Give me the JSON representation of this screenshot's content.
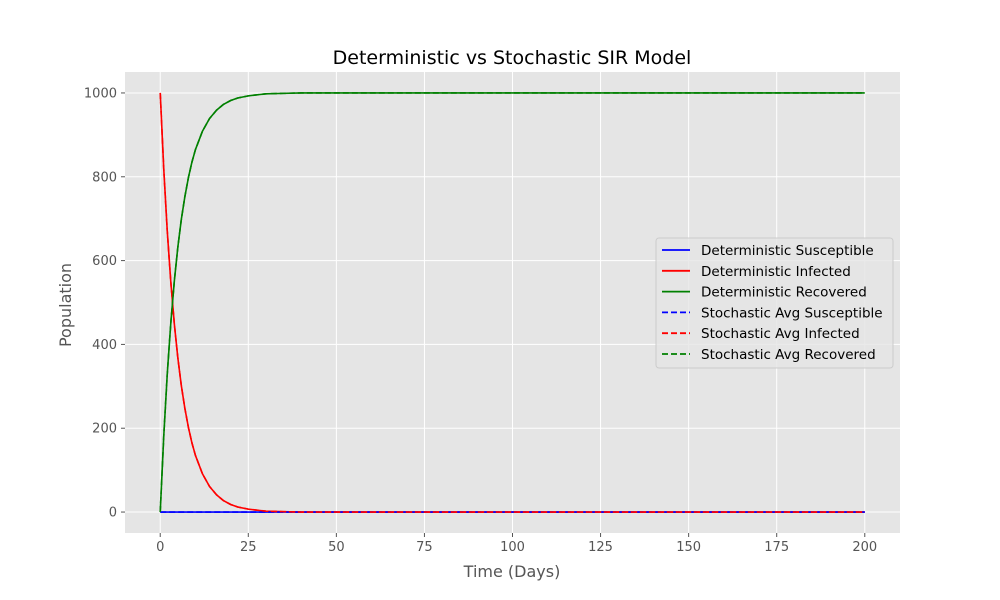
{
  "chart_data": {
    "type": "line",
    "title": "Deterministic vs Stochastic SIR Model",
    "xlabel": "Time (Days)",
    "ylabel": "Population",
    "xlim": [
      -10,
      210
    ],
    "ylim": [
      -50,
      1050
    ],
    "xticks": [
      0,
      25,
      50,
      75,
      100,
      125,
      150,
      175,
      200
    ],
    "yticks": [
      0,
      200,
      400,
      600,
      800,
      1000
    ],
    "grid": true,
    "legend_placement": "center-right",
    "x": [
      0,
      1,
      2,
      3,
      4,
      5,
      6,
      7,
      8,
      9,
      10,
      12,
      14,
      16,
      18,
      20,
      22,
      25,
      28,
      30,
      35,
      40,
      50,
      75,
      100,
      125,
      150,
      175,
      200
    ],
    "series": [
      {
        "name": "Deterministic Susceptible",
        "color": "#0000ff",
        "style": "solid",
        "values": [
          0,
          0,
          0,
          0,
          0,
          0,
          0,
          0,
          0,
          0,
          0,
          0,
          0,
          0,
          0,
          0,
          0,
          0,
          0,
          0,
          0,
          0,
          0,
          0,
          0,
          0,
          0,
          0,
          0
        ]
      },
      {
        "name": "Deterministic Infected",
        "color": "#ff0000",
        "style": "solid",
        "values": [
          1000,
          819,
          670,
          549,
          449,
          368,
          301,
          247,
          202,
          165,
          135,
          91,
          61,
          41,
          27,
          18,
          12,
          7,
          4,
          2,
          1,
          0,
          0,
          0,
          0,
          0,
          0,
          0,
          0
        ]
      },
      {
        "name": "Deterministic Recovered",
        "color": "#008000",
        "style": "solid",
        "values": [
          0,
          181,
          330,
          451,
          551,
          632,
          699,
          753,
          798,
          835,
          865,
          909,
          939,
          959,
          973,
          982,
          988,
          993,
          996,
          998,
          999,
          1000,
          1000,
          1000,
          1000,
          1000,
          1000,
          1000,
          1000
        ]
      },
      {
        "name": "Stochastic Avg Susceptible",
        "color": "#0000ff",
        "style": "dashed",
        "values": [
          0,
          0,
          0,
          0,
          0,
          0,
          0,
          0,
          0,
          0,
          0,
          0,
          0,
          0,
          0,
          0,
          0,
          0,
          0,
          0,
          0,
          0,
          0,
          0,
          0,
          0,
          0,
          0,
          0
        ]
      },
      {
        "name": "Stochastic Avg Infected",
        "color": "#ff0000",
        "style": "dashed",
        "values": [
          1000,
          819,
          670,
          549,
          449,
          368,
          301,
          247,
          202,
          165,
          135,
          91,
          61,
          41,
          27,
          18,
          12,
          7,
          4,
          2,
          1,
          0,
          0,
          0,
          0,
          0,
          0,
          0,
          0
        ]
      },
      {
        "name": "Stochastic Avg Recovered",
        "color": "#008000",
        "style": "dashed",
        "values": [
          0,
          181,
          330,
          451,
          551,
          632,
          699,
          753,
          798,
          835,
          865,
          909,
          939,
          959,
          973,
          982,
          988,
          993,
          996,
          998,
          999,
          1000,
          1000,
          1000,
          1000,
          1000,
          1000,
          1000,
          1000
        ]
      }
    ]
  }
}
